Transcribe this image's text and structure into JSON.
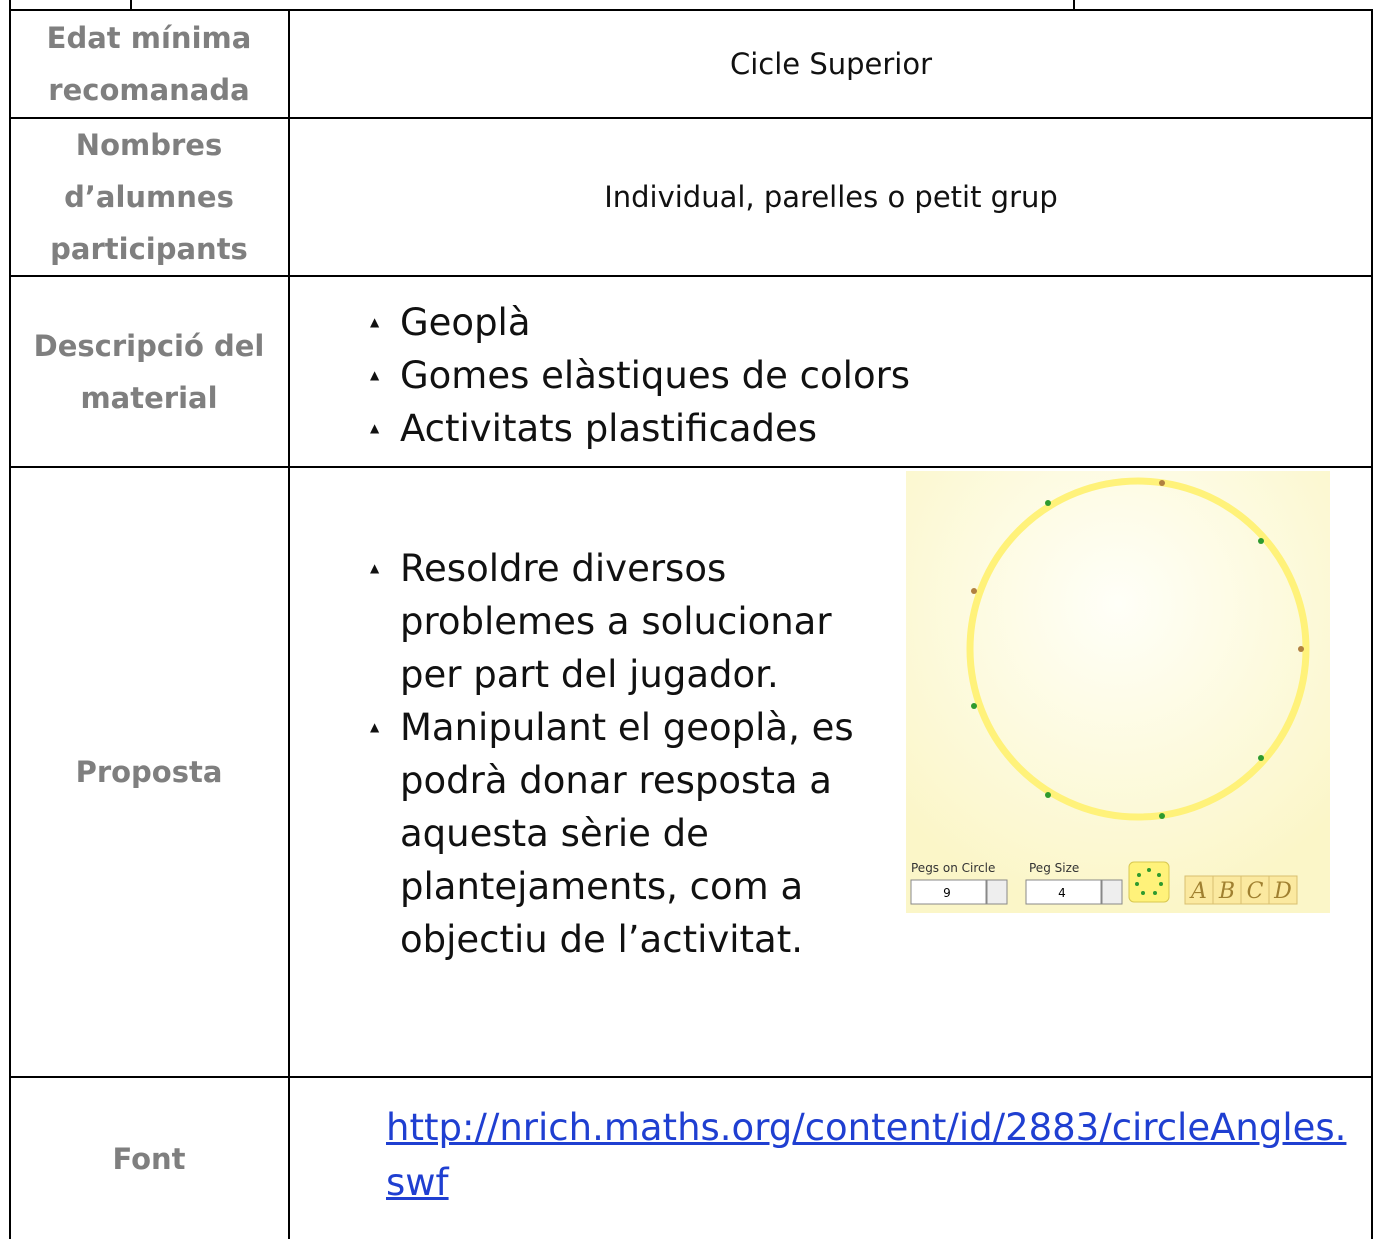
{
  "table": {
    "rows": [
      {
        "label": "Edat mínima recomanada",
        "value": "Cicle Superior"
      },
      {
        "label": "Nombres d’alumnes participants",
        "value": "Individual, parelles o petit grup"
      },
      {
        "label": "Descripció del material",
        "items": [
          "Geoplà",
          "Gomes elàstiques de colors",
          "Activitats plastificades"
        ]
      },
      {
        "label": "Proposta",
        "items": [
          "Resoldre diversos problemes a solucionar per part del jugador.",
          "Manipulant el geoplà, es podrà donar resposta a aquesta sèrie de plantejaments, com a objectiu de l’activitat."
        ]
      },
      {
        "label": "Font",
        "link": "http://nrich.maths.org/content/id/2883/circleAngles.swf"
      }
    ]
  },
  "applet": {
    "pegs_label": "Pegs on Circle",
    "pegs_value": "9",
    "size_label": "Peg Size",
    "size_value": "4",
    "buttons": [
      "A",
      "B",
      "C",
      "D"
    ]
  }
}
